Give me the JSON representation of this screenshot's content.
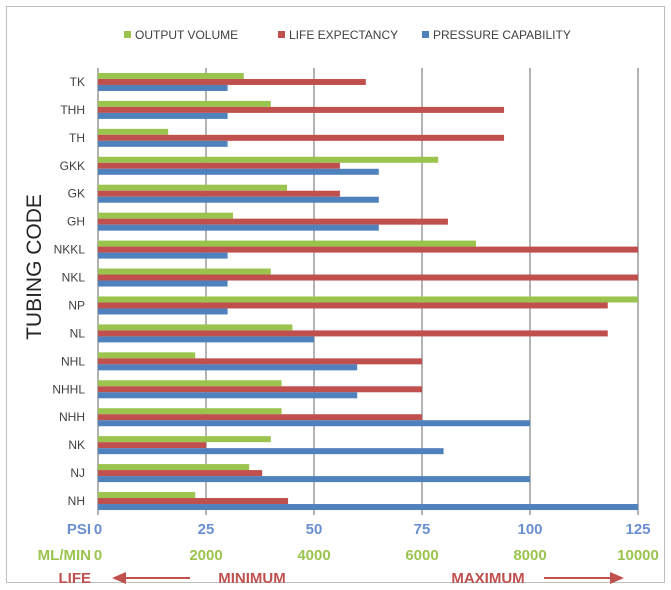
{
  "chart_data": {
    "type": "bar",
    "orientation": "horizontal",
    "ylabel": "TUBING CODE",
    "categories": [
      "TK",
      "THH",
      "TH",
      "GKK",
      "GK",
      "GH",
      "NKKL",
      "NKL",
      "NP",
      "NL",
      "NHL",
      "NHHL",
      "NHH",
      "NK",
      "NJ",
      "NH"
    ],
    "series": [
      {
        "name": "OUTPUT VOLUME",
        "color": "#9bc44f",
        "axis": "ML/MIN",
        "values": [
          2700,
          3200,
          1300,
          6300,
          3500,
          2500,
          7000,
          3200,
          10000,
          3600,
          1800,
          3400,
          3400,
          3200,
          2800,
          1800
        ]
      },
      {
        "name": "LIFE EXPECTANCY",
        "color": "#c0504d",
        "values": [
          62,
          94,
          94,
          56,
          56,
          81,
          125,
          125,
          118,
          118,
          75,
          75,
          75,
          25,
          38,
          44
        ]
      },
      {
        "name": "PRESSURE CAPABILITY",
        "color": "#4f81bd",
        "axis": "PSI",
        "values": [
          30,
          30,
          30,
          65,
          65,
          65,
          30,
          30,
          30,
          50,
          60,
          60,
          100,
          80,
          100,
          125
        ]
      }
    ],
    "axes": [
      {
        "label": "PSI",
        "color": "#6a8fd0",
        "range": [
          0,
          125
        ],
        "ticks": [
          "0",
          "25",
          "50",
          "75",
          "100",
          "125"
        ]
      },
      {
        "label": "ML/MIN",
        "color": "#9bc44f",
        "range": [
          0,
          10000
        ],
        "ticks": [
          "0",
          "2000",
          "4000",
          "6000",
          "8000",
          "10000"
        ]
      }
    ],
    "life_row": {
      "label": "LIFE",
      "left_text": "MINIMUM",
      "right_text": "MAXIMUM",
      "color": "#c0504d"
    },
    "grid": true,
    "legend_position": "top"
  }
}
